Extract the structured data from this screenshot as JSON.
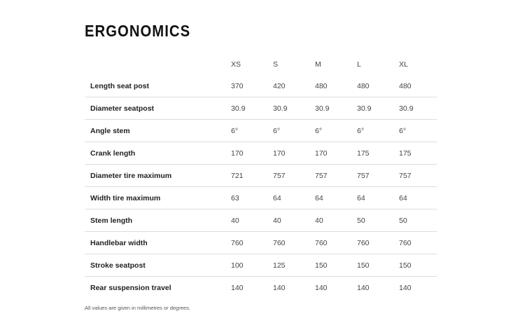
{
  "title": "ERGONOMICS",
  "sizes": [
    "XS",
    "S",
    "M",
    "L",
    "XL"
  ],
  "rows": [
    {
      "label": "Length seat post",
      "values": [
        "370",
        "420",
        "480",
        "480",
        "480"
      ]
    },
    {
      "label": "Diameter seatpost",
      "values": [
        "30.9",
        "30.9",
        "30.9",
        "30.9",
        "30.9"
      ]
    },
    {
      "label": "Angle stem",
      "values": [
        "6°",
        "6°",
        "6°",
        "6°",
        "6°"
      ]
    },
    {
      "label": "Crank length",
      "values": [
        "170",
        "170",
        "170",
        "175",
        "175"
      ]
    },
    {
      "label": "Diameter tire maximum",
      "values": [
        "721",
        "757",
        "757",
        "757",
        "757"
      ]
    },
    {
      "label": "Width tire maximum",
      "values": [
        "63",
        "64",
        "64",
        "64",
        "64"
      ]
    },
    {
      "label": "Stem length",
      "values": [
        "40",
        "40",
        "40",
        "50",
        "50"
      ]
    },
    {
      "label": "Handlebar width",
      "values": [
        "760",
        "760",
        "760",
        "760",
        "760"
      ]
    },
    {
      "label": "Stroke seatpost",
      "values": [
        "100",
        "125",
        "150",
        "150",
        "150"
      ]
    },
    {
      "label": "Rear suspension travel",
      "values": [
        "140",
        "140",
        "140",
        "140",
        "140"
      ]
    }
  ],
  "footnote": "All values are given in millimetres or degrees."
}
